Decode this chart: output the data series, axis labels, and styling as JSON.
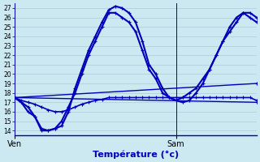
{
  "title": "Température (°c)",
  "bg_color": "#cce8f0",
  "grid_color": "#aaccdd",
  "line_color": "#0000bb",
  "yticks": [
    14,
    15,
    16,
    17,
    18,
    19,
    20,
    21,
    22,
    23,
    24,
    25,
    26,
    27
  ],
  "ylim": [
    13.5,
    27.5
  ],
  "xlim": [
    0,
    36
  ],
  "xtick_labels": [
    "Ven",
    "Sam"
  ],
  "xtick_positions": [
    0,
    24
  ],
  "series": [
    {
      "x": [
        0,
        1,
        2,
        3,
        4,
        5,
        6,
        7,
        8,
        9,
        10,
        11,
        12,
        13,
        14,
        15,
        16,
        17,
        18,
        19,
        20,
        21,
        22,
        23,
        24,
        25,
        26,
        27,
        28,
        29,
        30,
        31,
        32,
        33,
        34,
        35,
        36
      ],
      "y": [
        17.5,
        17.0,
        16.5,
        15.5,
        14.2,
        14.0,
        14.2,
        14.5,
        16.0,
        18.5,
        20.5,
        22.5,
        24.0,
        25.5,
        26.8,
        27.2,
        27.0,
        26.5,
        25.5,
        23.5,
        21.0,
        20.0,
        18.5,
        17.5,
        17.2,
        17.5,
        18.0,
        18.5,
        19.5,
        20.5,
        22.0,
        23.5,
        24.5,
        25.5,
        26.5,
        26.0,
        25.5
      ],
      "lw": 1.5,
      "ls": "-"
    },
    {
      "x": [
        0,
        1,
        2,
        3,
        4,
        5,
        6,
        7,
        8,
        9,
        10,
        11,
        12,
        13,
        14,
        15,
        16,
        17,
        18,
        19,
        20,
        21,
        22,
        23,
        24,
        25,
        26,
        27,
        28,
        29,
        30,
        31,
        32,
        33,
        34,
        35,
        36
      ],
      "y": [
        17.5,
        17.0,
        16.0,
        15.5,
        14.0,
        14.0,
        14.2,
        15.0,
        16.5,
        18.0,
        20.0,
        22.0,
        23.5,
        25.0,
        26.5,
        26.5,
        26.0,
        25.5,
        24.5,
        22.5,
        20.5,
        19.5,
        18.0,
        17.5,
        17.2,
        17.0,
        17.2,
        18.0,
        19.0,
        20.5,
        22.0,
        23.5,
        25.0,
        26.0,
        26.5,
        26.5,
        26.0
      ],
      "lw": 1.5,
      "ls": "-"
    },
    {
      "x": [
        0,
        1,
        2,
        3,
        4,
        5,
        6,
        7,
        8,
        9,
        10,
        11,
        12,
        13,
        14,
        15,
        16,
        17,
        18,
        19,
        20,
        21,
        22,
        23,
        24,
        25,
        26,
        27,
        28,
        29,
        30,
        31,
        32,
        33,
        34,
        35,
        36
      ],
      "y": [
        17.5,
        17.2,
        17.0,
        16.8,
        16.5,
        16.2,
        16.0,
        16.0,
        16.2,
        16.5,
        16.8,
        17.0,
        17.2,
        17.3,
        17.5,
        17.5,
        17.5,
        17.5,
        17.5,
        17.5,
        17.5,
        17.5,
        17.5,
        17.5,
        17.5,
        17.5,
        17.5,
        17.5,
        17.5,
        17.5,
        17.5,
        17.5,
        17.5,
        17.5,
        17.5,
        17.5,
        17.2
      ],
      "lw": 1.2,
      "ls": "-"
    },
    {
      "x": [
        0,
        36
      ],
      "y": [
        17.5,
        19.0
      ],
      "lw": 1.0,
      "ls": "-"
    },
    {
      "x": [
        0,
        36
      ],
      "y": [
        17.5,
        17.0
      ],
      "lw": 1.0,
      "ls": "-"
    }
  ]
}
